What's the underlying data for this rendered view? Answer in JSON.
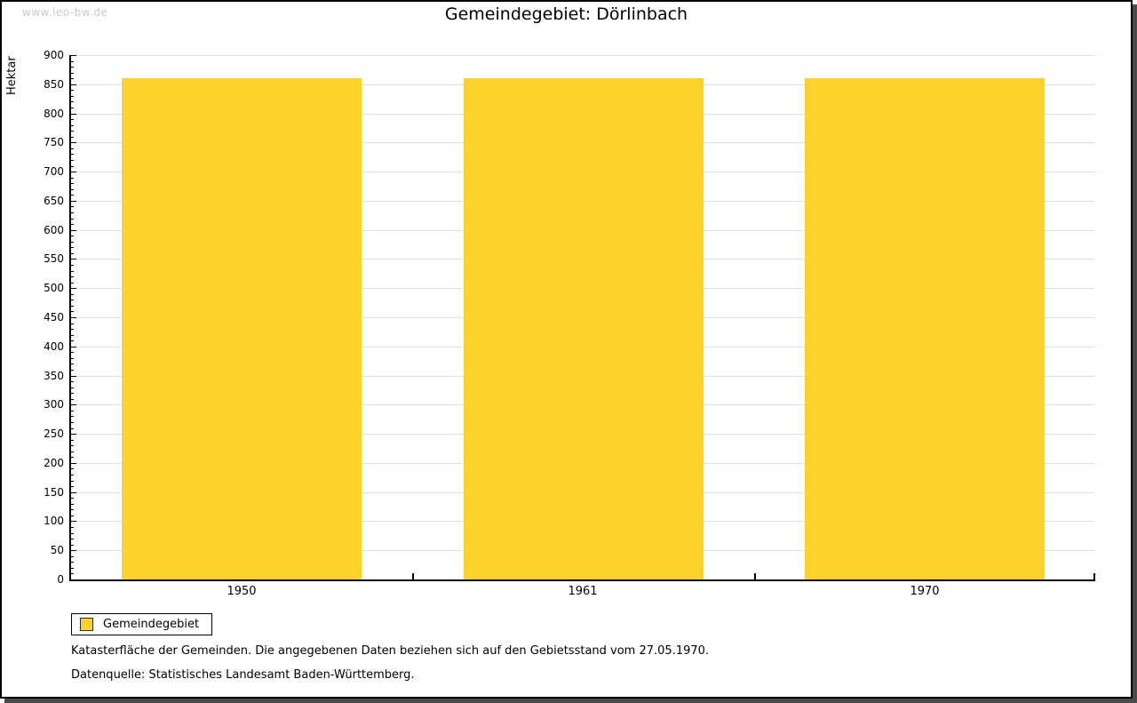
{
  "watermark": "www.leo-bw.de",
  "header": {
    "title": "Gemeindegebiet: Dörlinbach"
  },
  "chart_data": {
    "type": "bar",
    "title": "Gemeindegebiet: Dörlinbach",
    "categories": [
      "1950",
      "1961",
      "1970"
    ],
    "series": [
      {
        "name": "Gemeindegebiet",
        "values": [
          860,
          860,
          860
        ]
      }
    ],
    "xlabel": "",
    "ylabel": "Hektar",
    "ylim": [
      0,
      900
    ],
    "y_major_step": 50,
    "y_minor_step": 10,
    "grid": "horizontal-major-only",
    "legend_position": "bottom-left",
    "bar_color": "#FDD32B"
  },
  "legend": {
    "items": [
      {
        "label": "Gemeindegebiet",
        "color": "#FDD32B"
      }
    ]
  },
  "footnotes": {
    "description": "Katasterfläche der Gemeinden. Die angegebenen Daten beziehen sich auf den Gebietsstand vom 27.05.1970.",
    "source": "Datenquelle: Statistisches Landesamt Baden-Württemberg."
  },
  "colors": {
    "bar": "#FDD32B",
    "gridline": "#E0E0E0",
    "axis": "#000000",
    "watermark": "#C9C9C9",
    "frame_border": "#000000",
    "frame_shadow": "#4B4B4B",
    "background": "#FFFFFF"
  }
}
